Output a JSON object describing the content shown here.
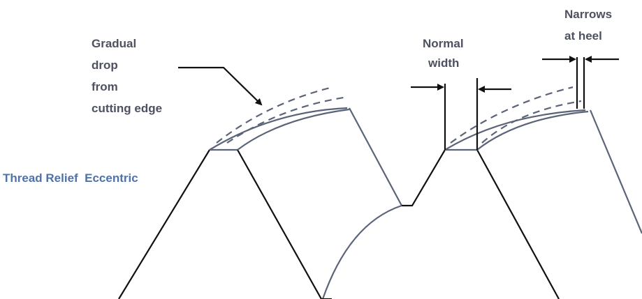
{
  "labels": {
    "drop": [
      "Gradual",
      "drop",
      "from",
      "cutting edge"
    ],
    "normal": [
      "Normal",
      "width"
    ],
    "heel": [
      "Narrows",
      "at heel"
    ],
    "caption": "Thread Relief  Eccentric"
  }
}
